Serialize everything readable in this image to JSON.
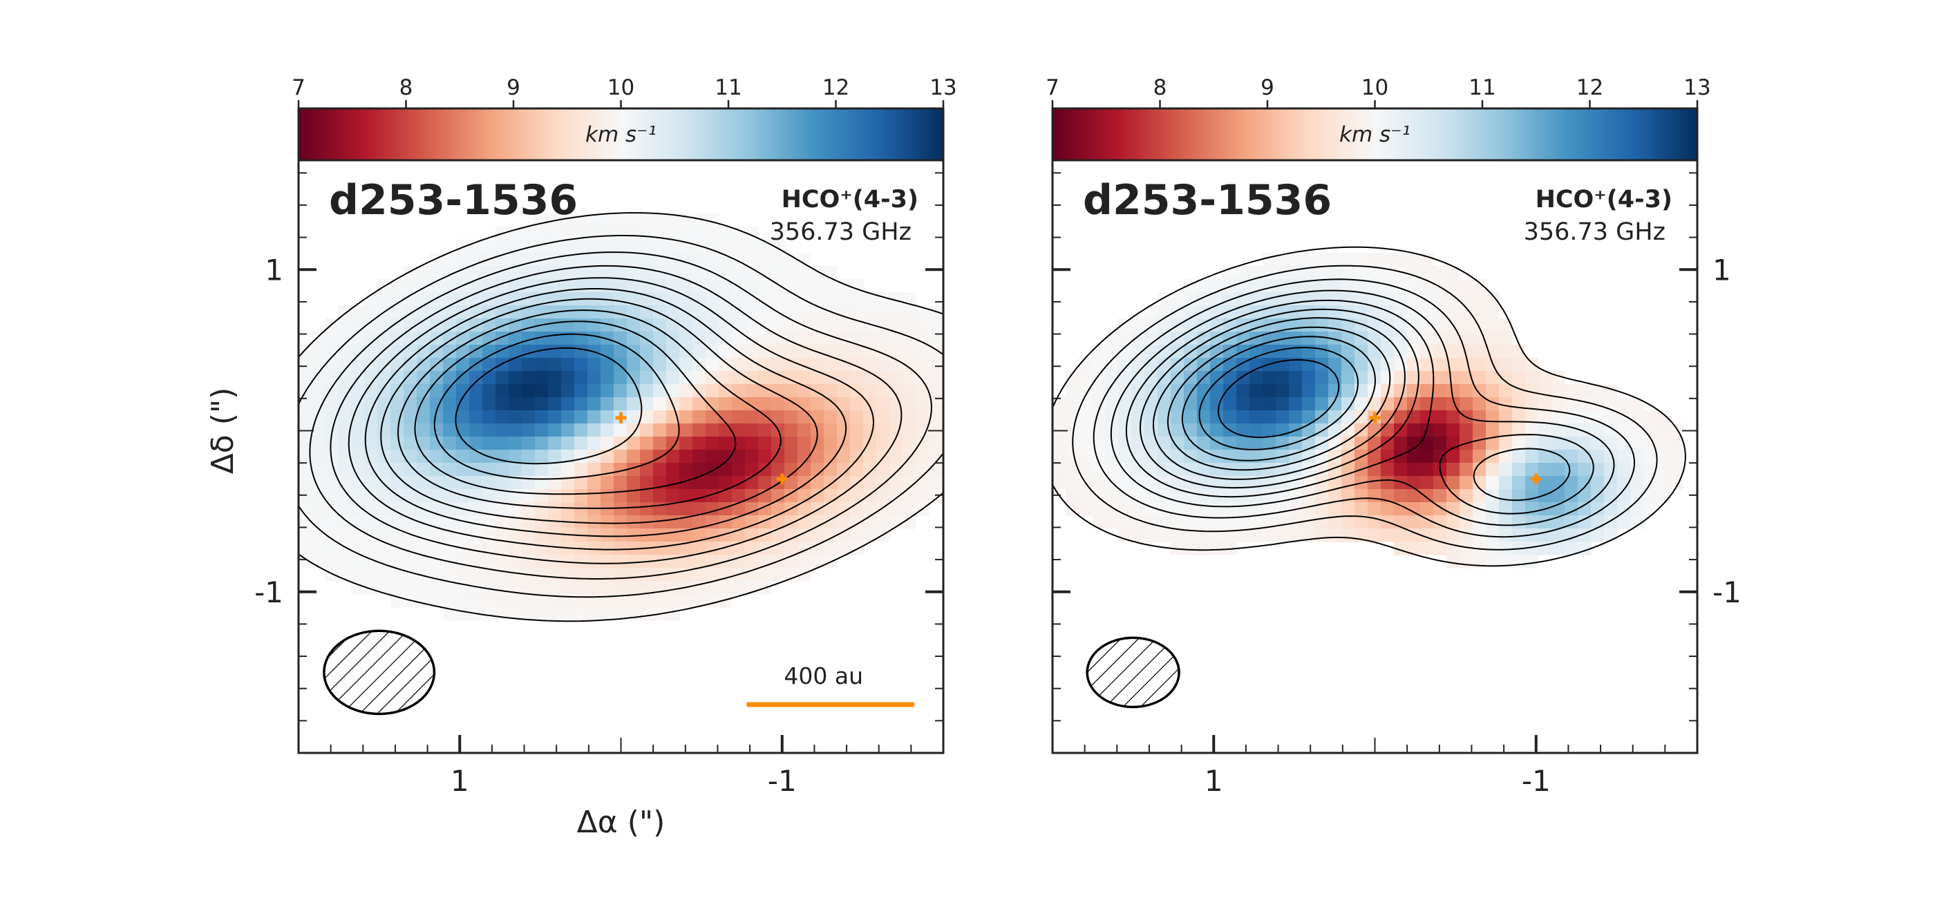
{
  "chart_data": [
    {
      "type": "heatmap",
      "source": "d253-1536",
      "line": "HCO⁺(4-3)",
      "frequency": "356.73 GHz",
      "xlabel": "Δα (\")",
      "ylabel": "Δδ (\")",
      "x_ticks": [
        "1",
        "-1"
      ],
      "y_ticks": [
        "1",
        "-1"
      ],
      "x_tick_values": [
        1,
        -1
      ],
      "y_tick_values": [
        1,
        -1
      ],
      "xlim": [
        2.0,
        -2.0
      ],
      "ylim": [
        -2.0,
        2.0
      ],
      "colorbar": {
        "label": "km s⁻¹",
        "ticks": [
          "7",
          "8",
          "9",
          "10",
          "11",
          "12",
          "13"
        ],
        "range": [
          7,
          13
        ],
        "cmap": "RdBu",
        "position": "top"
      },
      "beam": {
        "x": 1.5,
        "y": -1.5,
        "major": 0.6,
        "minor": 0.52,
        "pa_deg": 0
      },
      "stars": [
        {
          "x": 0.0,
          "y": 0.08
        },
        {
          "x": -1.0,
          "y": -0.3
        }
      ],
      "scale_bar": {
        "label": "400 au",
        "x_start": -0.78,
        "x_end": -1.82,
        "y": -1.7,
        "color": "#ff8c00"
      },
      "velocity_field": {
        "components": [
          {
            "x": 0.55,
            "y": 0.25,
            "sx": 0.55,
            "sy": 0.32,
            "amp": 3.0,
            "angle_deg": -15
          },
          {
            "x": -0.55,
            "y": -0.22,
            "sx": 0.6,
            "sy": 0.3,
            "amp": -2.8,
            "angle_deg": -15
          }
        ],
        "v_systemic": 10.0,
        "mask_threshold": 0.09
      },
      "emission": {
        "components": [
          {
            "x": 0.55,
            "y": 0.2,
            "sx": 0.85,
            "sy": 0.48,
            "amp": 1.0,
            "angle_deg": -20
          },
          {
            "x": -0.75,
            "y": -0.2,
            "sx": 0.95,
            "sy": 0.42,
            "amp": 0.55,
            "angle_deg": -20
          }
        ],
        "contour_levels": [
          0.1,
          0.17,
          0.24,
          0.31,
          0.38,
          0.45,
          0.52,
          0.6,
          0.68,
          0.77,
          0.86
        ]
      }
    },
    {
      "type": "heatmap",
      "source": "d253-1536",
      "line": "HCO⁺(4-3)",
      "frequency": "356.73 GHz",
      "xlabel": "",
      "ylabel": "",
      "x_ticks": [
        "1",
        "-1"
      ],
      "y_ticks": [
        "1",
        "-1"
      ],
      "x_tick_values": [
        1,
        -1
      ],
      "y_tick_values": [
        1,
        -1
      ],
      "xlim": [
        2.0,
        -2.0
      ],
      "ylim": [
        -2.0,
        2.0
      ],
      "colorbar": {
        "label": "km s⁻¹",
        "ticks": [
          "7",
          "8",
          "9",
          "10",
          "11",
          "12",
          "13"
        ],
        "range": [
          7,
          13
        ],
        "cmap": "RdBu",
        "position": "top"
      },
      "beam": {
        "x": 1.5,
        "y": -1.5,
        "major": 0.5,
        "minor": 0.42,
        "pa_deg": 0
      },
      "stars": [
        {
          "x": 0.0,
          "y": 0.08
        },
        {
          "x": -1.0,
          "y": -0.3
        }
      ],
      "scale_bar": null,
      "velocity_field": {
        "components": [
          {
            "x": 0.65,
            "y": 0.25,
            "sx": 0.45,
            "sy": 0.3,
            "amp": 3.0,
            "angle_deg": -15
          },
          {
            "x": -0.3,
            "y": -0.1,
            "sx": 0.35,
            "sy": 0.28,
            "amp": -3.0,
            "angle_deg": -15
          },
          {
            "x": -1.05,
            "y": -0.35,
            "sx": 0.3,
            "sy": 0.22,
            "amp": 1.8,
            "angle_deg": 0
          }
        ],
        "v_systemic": 9.9,
        "mask_threshold": 0.1
      },
      "emission": {
        "components": [
          {
            "x": 0.6,
            "y": 0.2,
            "sx": 0.7,
            "sy": 0.4,
            "amp": 1.0,
            "angle_deg": -18
          },
          {
            "x": -0.95,
            "y": -0.28,
            "sx": 0.55,
            "sy": 0.3,
            "amp": 0.5,
            "angle_deg": -10
          }
        ],
        "contour_levels": [
          0.1,
          0.17,
          0.24,
          0.31,
          0.38,
          0.45,
          0.52,
          0.6,
          0.68,
          0.77,
          0.86
        ]
      }
    }
  ]
}
